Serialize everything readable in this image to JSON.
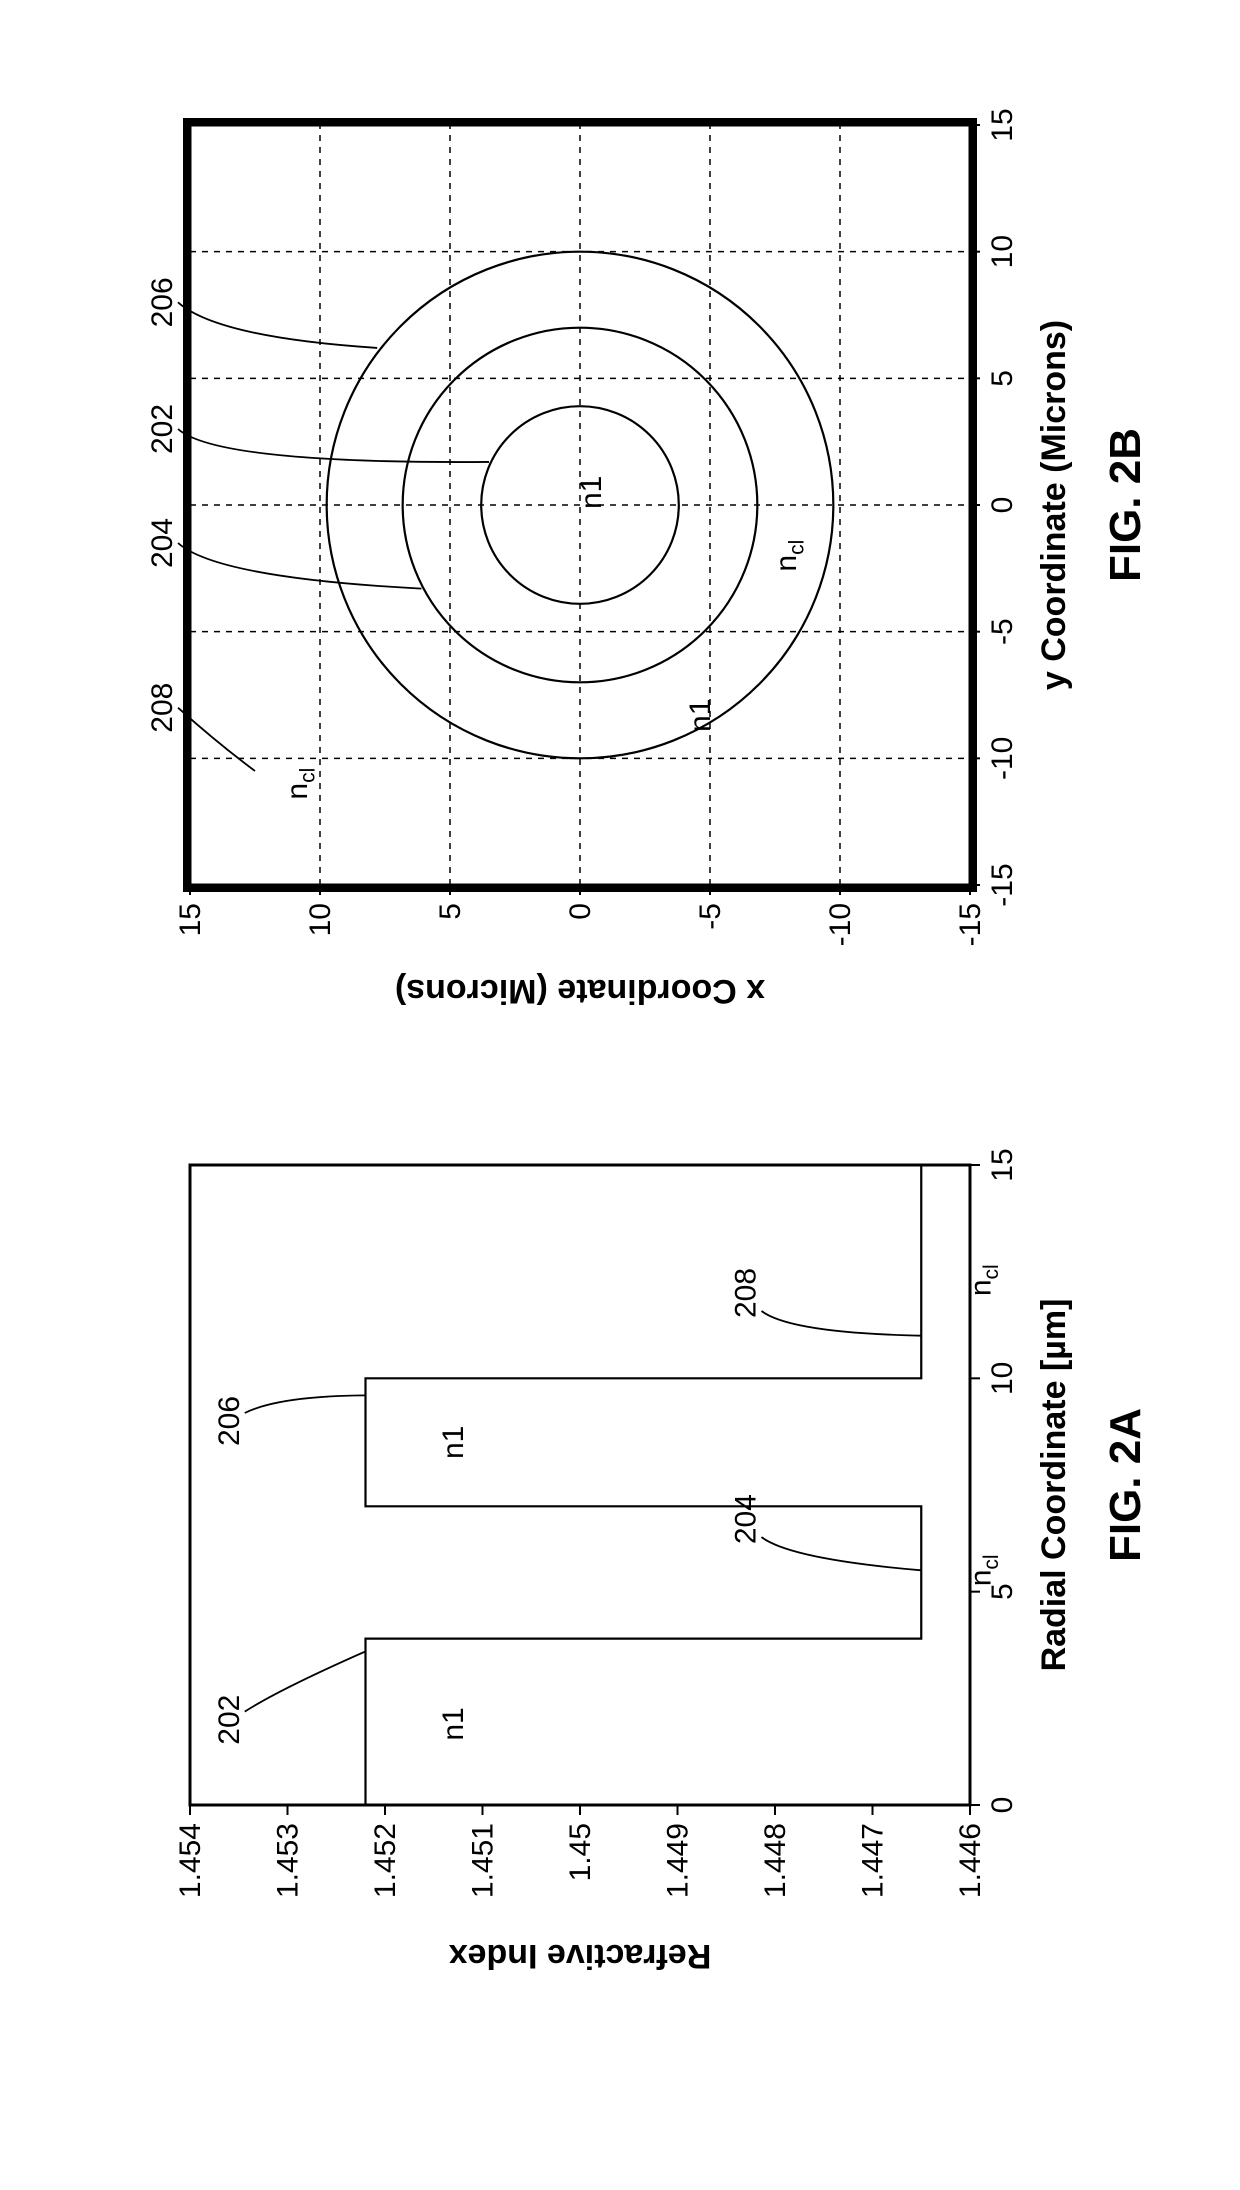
{
  "figA": {
    "caption": "FIG. 2A",
    "xlabel": "Radial Coordinate [µm]",
    "ylabel": "Refractive Index",
    "xlim": [
      0,
      15
    ],
    "ylim": [
      1.446,
      1.454
    ],
    "xticks": [
      0,
      5,
      10,
      15
    ],
    "yticks": [
      1.446,
      1.447,
      1.448,
      1.449,
      1.45,
      1.451,
      1.452,
      1.453,
      1.454
    ],
    "n1": 1.4522,
    "ncl": 1.4465,
    "regions": {
      "core": {
        "r0": 0,
        "r1": 3.9,
        "n": 1.4522,
        "label_num": "202",
        "label_n": "n1"
      },
      "cladding1": {
        "r0": 3.9,
        "r1": 7.0,
        "n": 1.4465,
        "label_num": "204",
        "label_n_html": "ncl"
      },
      "ring": {
        "r0": 7.0,
        "r1": 10.0,
        "n": 1.4522,
        "label_num": "206",
        "label_n": "n1"
      },
      "cladding2": {
        "r0": 10.0,
        "r1": 15.0,
        "n": 1.4465,
        "label_num": "208",
        "label_n_html": "ncl"
      }
    },
    "line_color": "#000000",
    "line_width": 2.2,
    "frame_width": 3,
    "font_size_axis": 30,
    "font_size_label": 34
  },
  "figB": {
    "caption": "FIG. 2B",
    "xlabel": "y Coordinate (Microns)",
    "ylabel": "x Coordinate (Microns)",
    "xlim": [
      -15,
      15
    ],
    "ylim": [
      -15,
      15
    ],
    "ticks": [
      -15,
      -10,
      -5,
      0,
      5,
      10,
      15
    ],
    "circles": [
      {
        "r": 3.9,
        "label_num": "202",
        "label_n": "n1"
      },
      {
        "r": 7.0,
        "label_num": "204"
      },
      {
        "r": 10.0,
        "label_num": "206"
      }
    ],
    "outer_label": {
      "label_num": "208"
    },
    "n_labels": {
      "center": "n1",
      "ring": "n1",
      "cl_inner": "ncl",
      "cl_outer": "ncl"
    },
    "line_color": "#000000",
    "line_width": 2.2,
    "grid_color": "#000000",
    "grid_dash": "6,6",
    "frame_width": 3,
    "font_size_axis": 30,
    "font_size_label": 34
  },
  "colors": {
    "bg": "#ffffff",
    "ink": "#000000"
  }
}
